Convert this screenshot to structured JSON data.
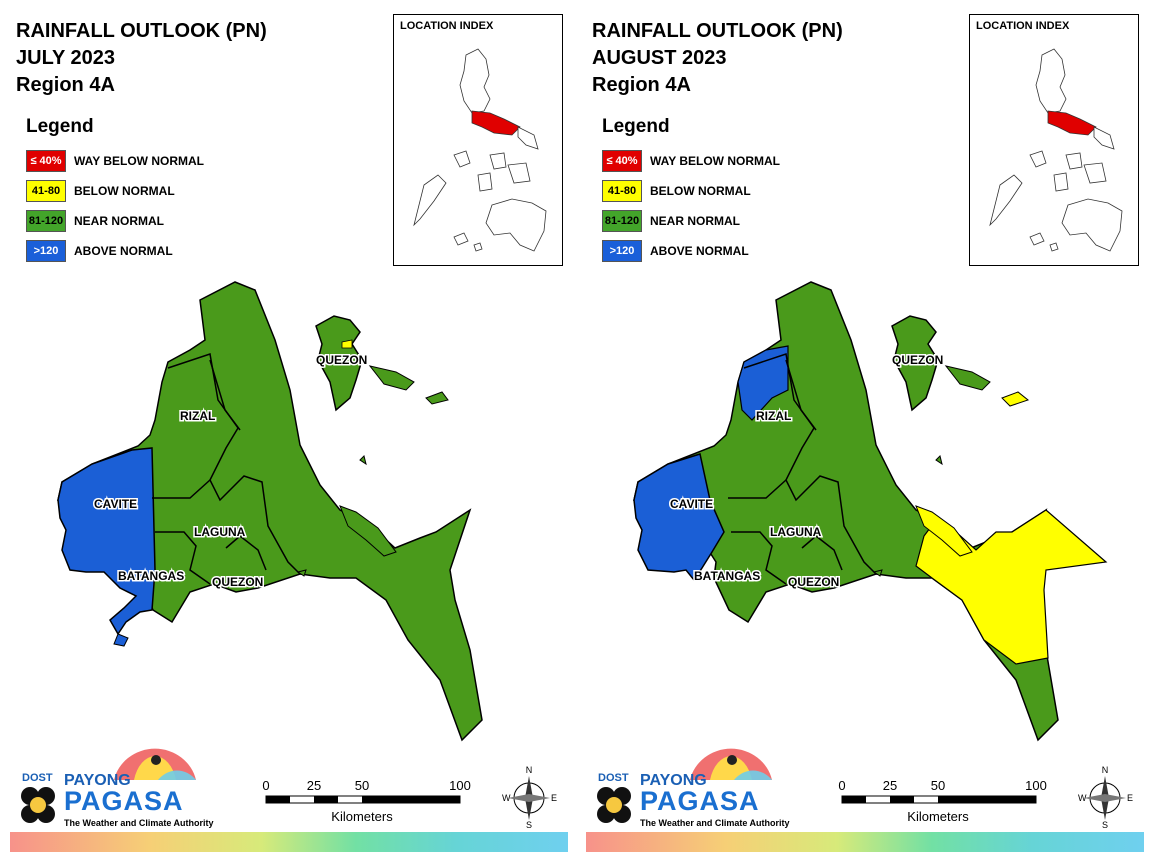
{
  "panels": [
    {
      "title_line1": "RAINFALL OUTLOOK (PN)",
      "title_line2": "JULY 2023",
      "title_line3": "Region 4A",
      "inset_title": "LOCATION INDEX",
      "labels": {
        "quezon_north": "QUEZON",
        "rizal": "RIZAL",
        "cavite": "CAVITE",
        "laguna": "LAGUNA",
        "batangas": "BATANGAS",
        "quezon_south": "QUEZON"
      }
    },
    {
      "title_line1": "RAINFALL OUTLOOK (PN)",
      "title_line2": "AUGUST 2023",
      "title_line3": "Region 4A",
      "inset_title": "LOCATION INDEX",
      "labels": {
        "quezon_north": "QUEZON",
        "rizal": "RIZAL",
        "cavite": "CAVITE",
        "laguna": "LAGUNA",
        "batangas": "BATANGAS",
        "quezon_south": "QUEZON"
      }
    }
  ],
  "legend": {
    "title": "Legend",
    "items": [
      {
        "range": "≤ 40%",
        "label": "WAY BELOW NORMAL",
        "color": "#e00000",
        "text_color": "#ffffff"
      },
      {
        "range": "41-80",
        "label": "BELOW NORMAL",
        "color": "#ffff00",
        "text_color": "#000000"
      },
      {
        "range": "81-120",
        "label": "NEAR NORMAL",
        "color": "#43a52a",
        "text_color": "#000000"
      },
      {
        "range": ">120",
        "label": "ABOVE NORMAL",
        "color": "#1a5fd9",
        "text_color": "#ffffff"
      }
    ]
  },
  "map_colors": {
    "near_normal": "#4a9a1b",
    "above_normal": "#1b5fd6",
    "below_normal": "#ffff00",
    "outline": "#000000"
  },
  "logo": {
    "dost": "DOST",
    "payong": "PAYONG",
    "pagasa": "PAGASA",
    "tagline": "The Weather and Climate Authority"
  },
  "scalebar": {
    "ticks": [
      "0",
      "25",
      "50",
      "100"
    ],
    "unit": "Kilometers"
  },
  "compass": {
    "n": "N",
    "s": "S",
    "e": "E",
    "w": "W"
  }
}
